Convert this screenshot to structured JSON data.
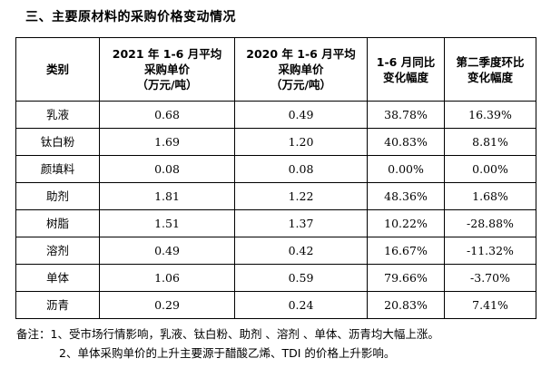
{
  "section_title": "三、主要原材料的采购价格变动情况",
  "table": {
    "headers": [
      {
        "lines": [
          "类别"
        ]
      },
      {
        "lines": [
          "2021 年 1-6 月平均",
          "采购单价",
          "（万元/吨）"
        ]
      },
      {
        "lines": [
          "2020 年 1-6 月平均",
          "采购单价",
          "（万元/吨）"
        ]
      },
      {
        "lines": [
          "1-6 月同比",
          "变化幅度"
        ]
      },
      {
        "lines": [
          "第二季度环比",
          "变化幅度"
        ]
      }
    ],
    "rows": [
      {
        "category": "乳液",
        "price_2021": "0.68",
        "price_2020": "0.49",
        "yoy": "38.78%",
        "qoq": "16.39%"
      },
      {
        "category": "钛白粉",
        "price_2021": "1.69",
        "price_2020": "1.20",
        "yoy": "40.83%",
        "qoq": "8.81%"
      },
      {
        "category": "颜填料",
        "price_2021": "0.08",
        "price_2020": "0.08",
        "yoy": "0.00%",
        "qoq": "0.00%"
      },
      {
        "category": "助剂",
        "price_2021": "1.81",
        "price_2020": "1.22",
        "yoy": "48.36%",
        "qoq": "1.68%"
      },
      {
        "category": "树脂",
        "price_2021": "1.51",
        "price_2020": "1.37",
        "yoy": "10.22%",
        "qoq": "-28.88%"
      },
      {
        "category": "溶剂",
        "price_2021": "0.49",
        "price_2020": "0.42",
        "yoy": "16.67%",
        "qoq": "-11.32%"
      },
      {
        "category": "单体",
        "price_2021": "1.06",
        "price_2020": "0.59",
        "yoy": "79.66%",
        "qoq": "-3.70%"
      },
      {
        "category": "沥青",
        "price_2021": "0.29",
        "price_2020": "0.24",
        "yoy": "20.83%",
        "qoq": "7.41%"
      }
    ]
  },
  "notes": {
    "line1": "备注：1、受市场行情影响，乳液、钛白粉、助剂 、溶剂 、单体、沥青均大幅上涨。",
    "line2": "2、单体采购单价的上升主要源于醋酸乙烯、TDI 的价格上升影响。"
  }
}
